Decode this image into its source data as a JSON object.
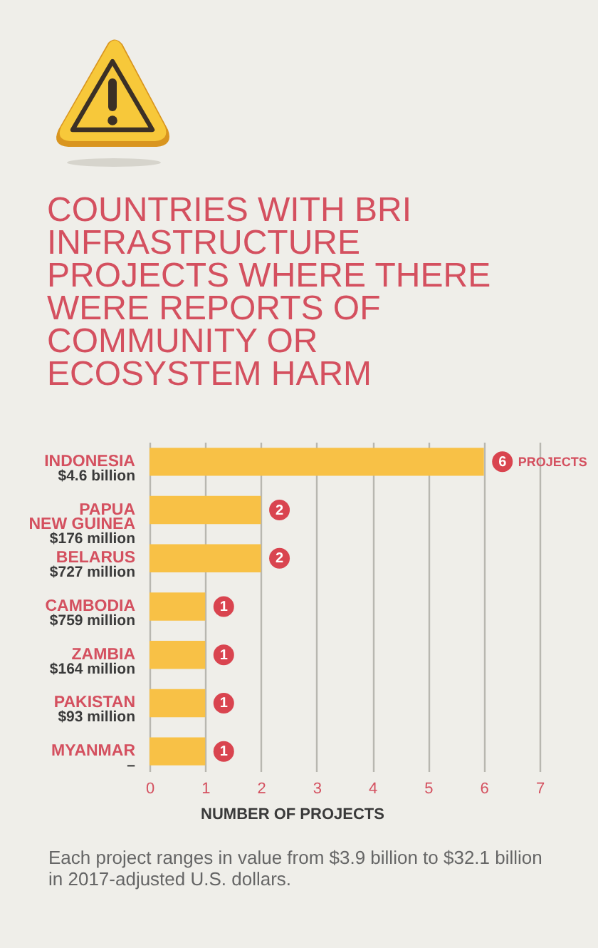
{
  "chart_data": {
    "type": "bar",
    "orientation": "horizontal",
    "title": "COUNTRIES WITH BRI INFRASTRUCTURE PROJECTS WHERE THERE WERE REPORTS OF COMMUNITY OR ECOSYSTEM HARM",
    "xlabel": "NUMBER OF PROJECTS",
    "categories": [
      "INDONESIA\n$4.6 billion",
      "PAPUA\nNEW GUINEA\n$176 million",
      "BELARUS\n$727 million",
      "CAMBODIA\n$759 million",
      "ZAMBIA\n$164 million",
      "PAKISTAN\n$93 million",
      "MYANMAR\n–"
    ],
    "values": [
      6,
      2,
      2,
      1,
      1,
      1,
      1
    ],
    "color": "#f8c146",
    "xlim": [
      0,
      7
    ],
    "xticks": [
      0,
      1,
      2,
      3,
      4,
      5,
      6,
      7
    ],
    "grid": "x",
    "data_labels": true,
    "annotations": [
      {
        "text": "PROJECTS",
        "x": 6,
        "y": "INDONESIA\n$4.6 billion"
      },
      "Each project ranges in value from $3.9 billion to $32.1 billion in 2017-adjusted U.S. dollars."
    ]
  }
}
